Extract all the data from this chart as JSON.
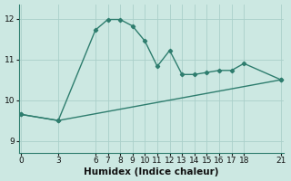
{
  "line1_x": [
    0,
    3,
    6,
    7,
    8,
    9,
    10,
    11,
    12,
    13,
    14,
    15,
    16,
    17,
    18,
    21
  ],
  "line1_y": [
    9.65,
    9.5,
    11.72,
    11.98,
    11.98,
    11.82,
    11.45,
    10.83,
    11.22,
    10.63,
    10.63,
    10.68,
    10.73,
    10.73,
    10.9,
    10.5
  ],
  "line2_x": [
    0,
    3,
    21
  ],
  "line2_y": [
    9.65,
    9.5,
    10.5
  ],
  "line_color": "#2e7d6e",
  "bg_color": "#cce8e2",
  "grid_color": "#aacfc9",
  "xlabel": "Humidex (Indice chaleur)",
  "xticks": [
    0,
    3,
    6,
    7,
    8,
    9,
    10,
    11,
    12,
    13,
    14,
    15,
    16,
    17,
    18,
    21
  ],
  "yticks": [
    9,
    10,
    11,
    12
  ],
  "xlim": [
    -0.2,
    21.2
  ],
  "ylim": [
    8.7,
    12.35
  ],
  "xlabel_fontsize": 7.5,
  "tick_fontsize": 6.5,
  "marker": "D",
  "markersize": 2.2,
  "linewidth": 1.0
}
